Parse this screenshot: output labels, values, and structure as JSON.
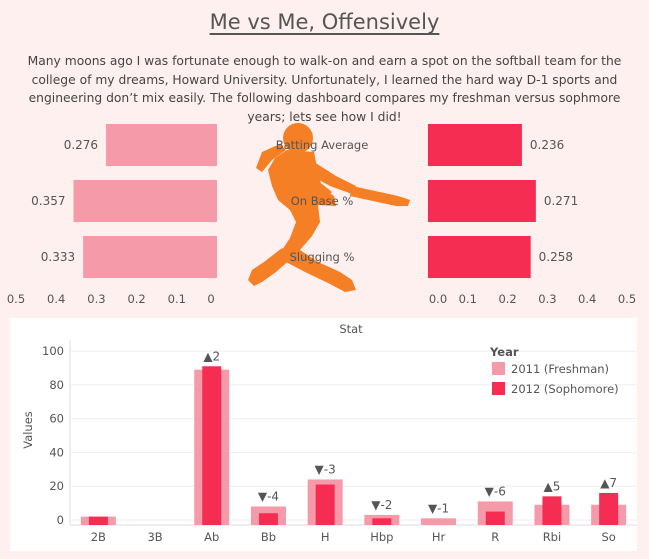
{
  "page": {
    "title": "Me vs Me, Offensively",
    "intro": "Many moons ago I was fortunate enough to walk-on and earn a spot on the softball team for the college of my dreams, Howard University. Unfortunately, I learned the hard way D-1 sports and engineering don’t mix easily. The following dashboard compares my freshman versus sophmore years; lets see how I did!"
  },
  "colors": {
    "freshman": "#f59aa8",
    "sophomore": "#f52d53",
    "silhouette": "#f47f25",
    "up": "#1aa31a",
    "down": "#e8132b"
  },
  "icons": {
    "silhouette": "batter-silhouette-icon"
  },
  "chart_data": [
    {
      "type": "bar",
      "orientation": "horizontal",
      "categories": [
        "Batting Average",
        "On Base %",
        "Slugging %"
      ],
      "series": [
        {
          "name": "2011 (Freshman)",
          "values": [
            0.276,
            0.357,
            0.333
          ],
          "labels": [
            "0.276",
            "0.357",
            "0.333"
          ],
          "ticks": [
            "0.5",
            "0.4",
            "0.3",
            "0.2",
            "0.1",
            "0"
          ],
          "axis_direction": "reversed"
        },
        {
          "name": "2012 (Sophomore)",
          "values": [
            0.236,
            0.271,
            0.258
          ],
          "labels": [
            "0.236",
            "0.271",
            "0.258"
          ],
          "ticks": [
            "0.0",
            "0.1",
            "0.2",
            "0.3",
            "0.4",
            "0.5"
          ],
          "axis_direction": "normal"
        }
      ],
      "xlim": [
        0,
        0.5
      ]
    },
    {
      "type": "bar",
      "title": "Stat",
      "ylabel": "Values",
      "categories": [
        "2B",
        "3B",
        "Ab",
        "Bb",
        "H",
        "Hbp",
        "Hr",
        "R",
        "Rbi",
        "So"
      ],
      "series": [
        {
          "name": "2011 (Freshman)",
          "values": [
            2,
            0,
            89,
            8,
            24,
            3,
            1,
            11,
            9,
            9
          ]
        },
        {
          "name": "2012 (Sophomore)",
          "values": [
            2,
            0,
            91,
            4,
            21,
            1,
            0,
            5,
            14,
            16
          ]
        }
      ],
      "change_labels": [
        "",
        "",
        "▲2",
        "▼-4",
        "▼-3",
        "▼-2",
        "▼-1",
        "▼-6",
        "▲5",
        "▲7"
      ],
      "change_direction": [
        "",
        "",
        "up",
        "down",
        "down",
        "down",
        "down",
        "down",
        "up",
        "up"
      ],
      "yticks": [
        "0",
        "20",
        "40",
        "60",
        "80",
        "100"
      ],
      "ytick_values": [
        0,
        20,
        40,
        60,
        80,
        100
      ],
      "ylim": [
        0,
        103
      ],
      "legend": {
        "title": "Year",
        "position": "top-right"
      },
      "grid": true
    }
  ]
}
